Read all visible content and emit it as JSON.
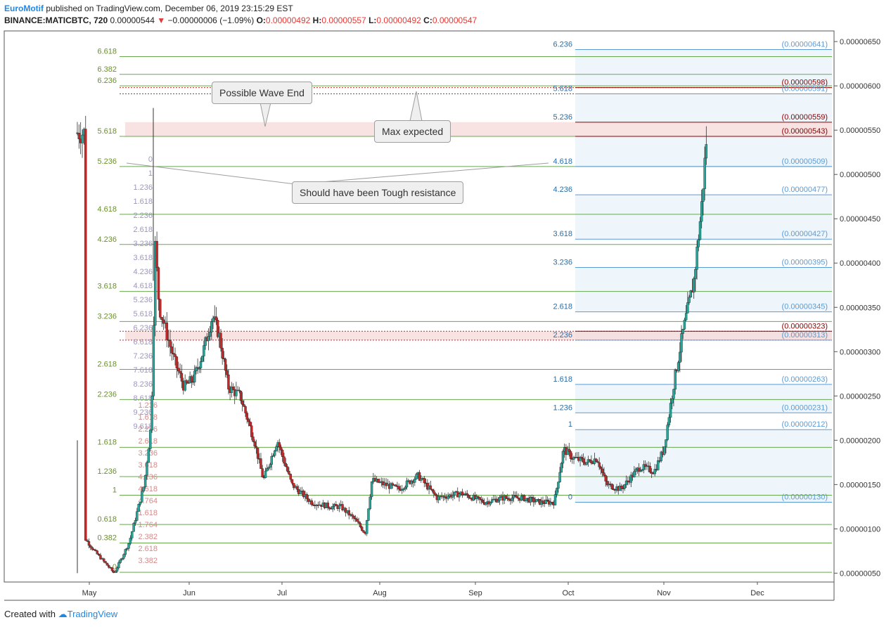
{
  "header": {
    "brand": "EuroMotif",
    "published": "published on TradingView.com, December 06, 2019 23:15:29 EST",
    "symbol": "BINANCE:MATICBTC, 720",
    "last": "0.00000544",
    "change_arrow": "▼",
    "change": "−0.00000006 (−1.09%)",
    "o_label": "O:",
    "o": "0.00000492",
    "h_label": "H:",
    "h": "0.00000557",
    "l_label": "L:",
    "l": "0.00000492",
    "c_label": "C:",
    "c": "0.00000547"
  },
  "footer": {
    "created": "Created with",
    "logo_text": "TradingView"
  },
  "annotations": {
    "wave_end": "Possible Wave End",
    "max_expected": "Max expected",
    "tough_resistance": "Should have been Tough resistance"
  },
  "colors": {
    "up": "#26a69a",
    "down": "#c62828",
    "grid_fib": "#6aa84f",
    "fib_blue": "#5b9bd5",
    "zone": "#f6d6d6",
    "accent": "#1e88e5"
  },
  "chart_data": {
    "type": "candlestick",
    "symbol": "BINANCE:MATICBTC",
    "interval": "720",
    "ylim": [
      4e-07,
      6.62e-06
    ],
    "y_ticks": [
      "0.00000650",
      "0.00000600",
      "0.00000550",
      "0.00000500",
      "0.00000450",
      "0.00000400",
      "0.00000350",
      "0.00000300",
      "0.00000250",
      "0.00000200",
      "0.00000150",
      "0.00000100",
      "0.00000050"
    ],
    "x_labels": [
      {
        "label": "May",
        "month": 0
      },
      {
        "label": "Jun",
        "month": 1
      },
      {
        "label": "Jul",
        "month": 2
      },
      {
        "label": "Aug",
        "month": 3
      },
      {
        "label": "Sep",
        "month": 4
      },
      {
        "label": "Oct",
        "month": 5
      },
      {
        "label": "Nov",
        "month": 6
      },
      {
        "label": "Dec",
        "month": 7
      }
    ],
    "price_anchors": [
      [
        -0.05,
        9e-07
      ],
      [
        0.05,
        7.5e-07
      ],
      [
        0.25,
        5e-07
      ],
      [
        0.4,
        8.5e-07
      ],
      [
        0.55,
        1.5e-06
      ],
      [
        0.62,
        2.2e-06
      ],
      [
        0.66,
        4.2e-06
      ],
      [
        0.7,
        3.5e-06
      ],
      [
        0.75,
        3.3e-06
      ],
      [
        0.85,
        2.9e-06
      ],
      [
        0.95,
        2.6e-06
      ],
      [
        1.05,
        2.7e-06
      ],
      [
        1.15,
        3e-06
      ],
      [
        1.25,
        3.4e-06
      ],
      [
        1.32,
        3.2e-06
      ],
      [
        1.42,
        2.6e-06
      ],
      [
        1.55,
        2.5e-06
      ],
      [
        1.7,
        2e-06
      ],
      [
        1.8,
        1.55e-06
      ],
      [
        1.95,
        2e-06
      ],
      [
        2.1,
        1.5e-06
      ],
      [
        2.3,
        1.3e-06
      ],
      [
        2.5,
        1.25e-06
      ],
      [
        2.6,
        1.25e-06
      ],
      [
        2.75,
        1.1e-06
      ],
      [
        2.85,
        9.5e-07
      ],
      [
        2.92,
        1.55e-06
      ],
      [
        3.05,
        1.5e-06
      ],
      [
        3.2,
        1.45e-06
      ],
      [
        3.4,
        1.6e-06
      ],
      [
        3.6,
        1.35e-06
      ],
      [
        3.85,
        1.4e-06
      ],
      [
        4.1,
        1.3e-06
      ],
      [
        4.3,
        1.35e-06
      ],
      [
        4.5,
        1.35e-06
      ],
      [
        4.7,
        1.3e-06
      ],
      [
        4.85,
        1.3e-06
      ],
      [
        4.95,
        1.9e-06
      ],
      [
        5.05,
        1.8e-06
      ],
      [
        5.2,
        1.75e-06
      ],
      [
        5.3,
        1.8e-06
      ],
      [
        5.4,
        1.5e-06
      ],
      [
        5.55,
        1.45e-06
      ],
      [
        5.75,
        1.7e-06
      ],
      [
        5.9,
        1.65e-06
      ],
      [
        6.0,
        1.9e-06
      ],
      [
        6.1,
        2.6e-06
      ],
      [
        6.2,
        3.2e-06
      ],
      [
        6.32,
        3.8e-06
      ],
      [
        6.4,
        4.6e-06
      ],
      [
        6.46,
        5.47e-06
      ]
    ],
    "left_fib": {
      "levels": [
        {
          "ratio": "6.618",
          "price": 6.33e-06
        },
        {
          "ratio": "6.382",
          "price": 6.13e-06
        },
        {
          "ratio": "6.236",
          "price": 6e-06
        },
        {
          "ratio": "5.618",
          "price": 5.43e-06
        },
        {
          "ratio": "5.236",
          "price": 5.09e-06
        },
        {
          "ratio": "4.618",
          "price": 4.55e-06
        },
        {
          "ratio": "4.236",
          "price": 4.21e-06
        },
        {
          "ratio": "3.618",
          "price": 3.68e-06
        },
        {
          "ratio": "3.236",
          "price": 3.34e-06
        },
        {
          "ratio": "2.618",
          "price": 2.8e-06
        },
        {
          "ratio": "2.236",
          "price": 2.46e-06
        },
        {
          "ratio": "1.618",
          "price": 1.92e-06
        },
        {
          "ratio": "1.236",
          "price": 1.59e-06
        },
        {
          "ratio": "1",
          "price": 1.38e-06
        },
        {
          "ratio": "0.618",
          "price": 1.05e-06
        },
        {
          "ratio": "0.382",
          "price": 8.4e-07
        },
        {
          "ratio": "0",
          "price": 5.1e-07
        }
      ],
      "zones": [
        [
          5.43e-06,
          5.59e-06
        ],
        [
          3.13e-06,
          3.23e-06
        ]
      ],
      "dotted": [
        5.98e-06,
        5.91e-06,
        3.23e-06,
        3.13e-06
      ]
    },
    "inner_labels_grey": [
      "0",
      "1",
      "1.236",
      "1.618",
      "2.236",
      "2.618",
      "3.236",
      "3.618",
      "4.236",
      "4.618",
      "5.236",
      "5.618",
      "6.236",
      "6.618",
      "7.236",
      "7.618",
      "8.236",
      "8.618",
      "9.236",
      "9.618"
    ],
    "inner_labels_red": [
      "1.236",
      "1.618",
      "2.236",
      "2.618",
      "3.236",
      "3.618",
      "4.236",
      "4.618",
      "4.764",
      "1.618",
      "1.764",
      "2.382",
      "2.618",
      "3.382"
    ],
    "right_fib": {
      "levels": [
        {
          "ratio": "6.236",
          "price": "(0.00000641)",
          "value": 6.41e-06,
          "zone": false
        },
        {
          "ratio": "",
          "price": "(0.00000598)",
          "value": 5.98e-06,
          "zone": true
        },
        {
          "ratio": "5.618",
          "price": "(0.00000591)",
          "value": 5.91e-06,
          "zone": false
        },
        {
          "ratio": "5.236",
          "price": "(0.00000559)",
          "value": 5.59e-06,
          "zone": true
        },
        {
          "ratio": "",
          "price": "(0.00000543)",
          "value": 5.43e-06,
          "zone": true
        },
        {
          "ratio": "4.618",
          "price": "(0.00000509)",
          "value": 5.09e-06,
          "zone": false
        },
        {
          "ratio": "4.236",
          "price": "(0.00000477)",
          "value": 4.77e-06,
          "zone": false
        },
        {
          "ratio": "3.618",
          "price": "(0.00000427)",
          "value": 4.27e-06,
          "zone": false
        },
        {
          "ratio": "3.236",
          "price": "(0.00000395)",
          "value": 3.95e-06,
          "zone": false
        },
        {
          "ratio": "2.618",
          "price": "(0.00000345)",
          "value": 3.45e-06,
          "zone": false
        },
        {
          "ratio": "",
          "price": "(0.00000323)",
          "value": 3.23e-06,
          "zone": true
        },
        {
          "ratio": "2.236",
          "price": "(0.00000313)",
          "value": 3.13e-06,
          "zone": false
        },
        {
          "ratio": "1.618",
          "price": "(0.00000263)",
          "value": 2.63e-06,
          "zone": false
        },
        {
          "ratio": "1.236",
          "price": "(0.00000231)",
          "value": 2.31e-06,
          "zone": false
        },
        {
          "ratio": "1",
          "price": "(0.00000212)",
          "value": 2.12e-06,
          "zone": false
        },
        {
          "ratio": "0",
          "price": "(0.00000130)",
          "value": 1.3e-06,
          "zone": false
        }
      ]
    },
    "grid": false
  }
}
